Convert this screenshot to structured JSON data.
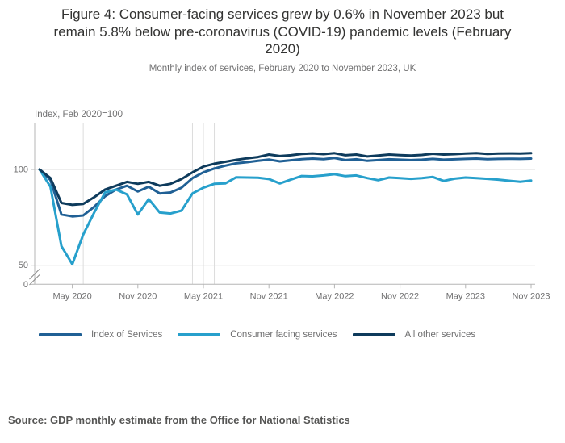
{
  "chart_data": {
    "type": "line",
    "title_lines": [
      "Figure 4: Consumer-facing services grew by 0.6% in November 2023 but",
      "remain 5.8% below pre-coronavirus (COVID-19) pandemic levels (February",
      "2020)"
    ],
    "subtitle": "Monthly index of services, February 2020 to November 2023, UK",
    "ylabel": "Index, Feb 2020=100",
    "xlabel": "",
    "ylim": [
      0,
      124
    ],
    "y_axis_break_between": [
      0,
      50
    ],
    "grid_horizontal_values": [
      100,
      50
    ],
    "event_line_month_indices": [
      4,
      14,
      15,
      16
    ],
    "y_ticks": [
      {
        "label": "100",
        "value": 100
      },
      {
        "label": "50",
        "value": 50
      },
      {
        "label": "0",
        "value": null
      }
    ],
    "x_ticks": [
      {
        "i": 3,
        "label": "May 2020"
      },
      {
        "i": 9,
        "label": "Nov 2020"
      },
      {
        "i": 15,
        "label": "May 2021"
      },
      {
        "i": 21,
        "label": "Nov 2021"
      },
      {
        "i": 27,
        "label": "May 2022"
      },
      {
        "i": 33,
        "label": "Nov 2022"
      },
      {
        "i": 39,
        "label": "May 2023"
      },
      {
        "i": 45,
        "label": "Nov 2023"
      }
    ],
    "categories": [
      "Feb 2020",
      "Mar 2020",
      "Apr 2020",
      "May 2020",
      "Jun 2020",
      "Jul 2020",
      "Aug 2020",
      "Sep 2020",
      "Oct 2020",
      "Nov 2020",
      "Dec 2020",
      "Jan 2021",
      "Feb 2021",
      "Mar 2021",
      "Apr 2021",
      "May 2021",
      "Jun 2021",
      "Jul 2021",
      "Aug 2021",
      "Sep 2021",
      "Oct 2021",
      "Nov 2021",
      "Dec 2021",
      "Jan 2022",
      "Feb 2022",
      "Mar 2022",
      "Apr 2022",
      "May 2022",
      "Jun 2022",
      "Jul 2022",
      "Aug 2022",
      "Sep 2022",
      "Oct 2022",
      "Nov 2022",
      "Dec 2022",
      "Jan 2023",
      "Feb 2023",
      "Mar 2023",
      "Apr 2023",
      "May 2023",
      "Jun 2023",
      "Jul 2023",
      "Aug 2023",
      "Sep 2023",
      "Oct 2023",
      "Nov 2023"
    ],
    "series": [
      {
        "name": "Index of Services",
        "color": "#206095",
        "values": [
          100,
          94.5,
          76.5,
          75.5,
          76.0,
          80.5,
          86.0,
          89.5,
          91.5,
          88.5,
          91.0,
          87.5,
          88.0,
          90.5,
          95.5,
          98.5,
          100.5,
          102.0,
          103.2,
          103.8,
          104.5,
          105.2,
          104.2,
          104.8,
          105.4,
          105.7,
          105.4,
          106.0,
          104.9,
          105.3,
          104.5,
          104.9,
          105.3,
          105.1,
          104.9,
          105.1,
          105.5,
          105.1,
          105.3,
          105.5,
          105.7,
          105.4,
          105.5,
          105.6,
          105.5,
          105.7
        ]
      },
      {
        "name": "Consumer facing services",
        "color": "#27a0cc",
        "values": [
          100,
          91.0,
          60.0,
          50.5,
          66.0,
          77.5,
          88.0,
          89.5,
          87.0,
          76.5,
          84.5,
          77.5,
          77.0,
          78.5,
          87.5,
          90.5,
          92.5,
          92.7,
          95.9,
          95.8,
          95.7,
          95.0,
          92.7,
          94.7,
          96.6,
          96.4,
          96.9,
          97.5,
          96.5,
          96.9,
          95.5,
          94.4,
          95.8,
          95.5,
          95.1,
          95.5,
          96.1,
          94.0,
          95.2,
          95.8,
          95.5,
          95.1,
          94.7,
          94.1,
          93.6,
          94.2
        ]
      },
      {
        "name": "All other services",
        "color": "#0e3b5c",
        "values": [
          100,
          95.5,
          82.5,
          81.5,
          82.0,
          85.5,
          89.5,
          91.5,
          93.5,
          92.5,
          93.5,
          91.5,
          92.5,
          95.0,
          98.5,
          101.5,
          103.0,
          104.0,
          105.0,
          105.8,
          106.5,
          107.8,
          107.0,
          107.4,
          108.1,
          108.4,
          108.0,
          108.5,
          107.4,
          107.8,
          106.8,
          107.3,
          107.8,
          107.5,
          107.3,
          107.6,
          108.2,
          107.8,
          108.0,
          108.3,
          108.5,
          108.1,
          108.3,
          108.4,
          108.3,
          108.5
        ]
      }
    ],
    "legend_position": "bottom",
    "axis_color": "#b5b5b5",
    "gridline_color": "#dcdcdc",
    "tick_text_color": "#707071"
  },
  "source": {
    "text": "Source: GDP monthly estimate from the Office for National Statistics"
  }
}
